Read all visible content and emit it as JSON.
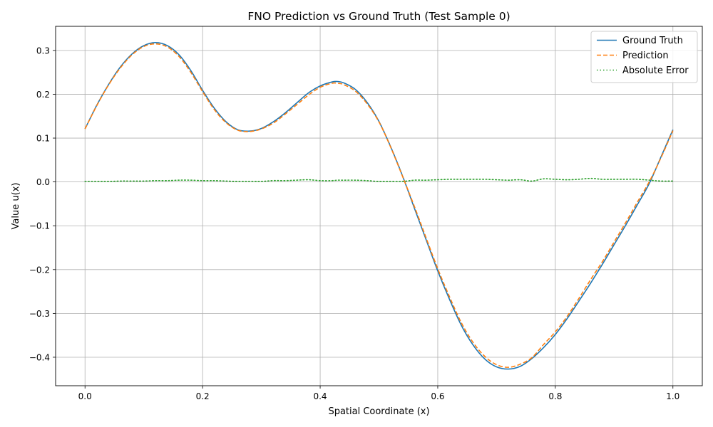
{
  "chart_data": {
    "type": "line",
    "title": "FNO Prediction vs Ground Truth (Test Sample 0)",
    "xlabel": "Spatial Coordinate (x)",
    "ylabel": "Value u(x)",
    "xlim": [
      -0.05,
      1.05
    ],
    "ylim": [
      -0.465,
      0.355
    ],
    "xticks": [
      0.0,
      0.2,
      0.4,
      0.6,
      0.8,
      1.0
    ],
    "xtick_labels": [
      "0.0",
      "0.2",
      "0.4",
      "0.6",
      "0.8",
      "1.0"
    ],
    "yticks": [
      0.3,
      0.2,
      0.1,
      0.0,
      -0.1,
      -0.2,
      -0.3,
      -0.4
    ],
    "ytick_labels": [
      "0.3",
      "0.2",
      "0.1",
      "0.0",
      "−0.1",
      "−0.2",
      "−0.3",
      "−0.4"
    ],
    "grid": true,
    "legend_position": "top-right",
    "x": [
      0.0,
      0.02,
      0.04,
      0.06,
      0.08,
      0.1,
      0.12,
      0.14,
      0.16,
      0.18,
      0.2,
      0.22,
      0.24,
      0.26,
      0.28,
      0.3,
      0.32,
      0.34,
      0.36,
      0.38,
      0.4,
      0.42,
      0.43,
      0.44,
      0.46,
      0.48,
      0.5,
      0.52,
      0.54,
      0.56,
      0.58,
      0.6,
      0.62,
      0.64,
      0.66,
      0.68,
      0.7,
      0.72,
      0.74,
      0.76,
      0.78,
      0.8,
      0.82,
      0.84,
      0.86,
      0.88,
      0.9,
      0.92,
      0.94,
      0.96,
      0.98,
      1.0
    ],
    "series": [
      {
        "name": "Ground Truth",
        "color": "#1f77b4",
        "style": "solid",
        "values": [
          0.121,
          0.175,
          0.222,
          0.262,
          0.292,
          0.311,
          0.318,
          0.311,
          0.29,
          0.254,
          0.209,
          0.168,
          0.137,
          0.119,
          0.116,
          0.122,
          0.137,
          0.157,
          0.18,
          0.203,
          0.219,
          0.228,
          0.229,
          0.226,
          0.211,
          0.181,
          0.138,
          0.08,
          0.014,
          -0.059,
          -0.131,
          -0.203,
          -0.268,
          -0.327,
          -0.372,
          -0.404,
          -0.422,
          -0.427,
          -0.421,
          -0.403,
          -0.378,
          -0.348,
          -0.312,
          -0.272,
          -0.231,
          -0.188,
          -0.143,
          -0.098,
          -0.051,
          -0.003,
          0.058,
          0.119
        ]
      },
      {
        "name": "Prediction",
        "color": "#ff7f0e",
        "style": "dashed",
        "values": [
          0.121,
          0.174,
          0.221,
          0.26,
          0.29,
          0.309,
          0.315,
          0.308,
          0.286,
          0.25,
          0.206,
          0.165,
          0.135,
          0.118,
          0.115,
          0.121,
          0.134,
          0.154,
          0.176,
          0.198,
          0.216,
          0.225,
          0.225,
          0.222,
          0.207,
          0.178,
          0.137,
          0.079,
          0.013,
          -0.055,
          -0.127,
          -0.198,
          -0.262,
          -0.321,
          -0.366,
          -0.398,
          -0.417,
          -0.423,
          -0.416,
          -0.401,
          -0.371,
          -0.342,
          -0.307,
          -0.266,
          -0.223,
          -0.182,
          -0.137,
          -0.092,
          -0.045,
          0.001,
          0.056,
          0.117
        ]
      },
      {
        "name": "Absolute Error",
        "color": "#2ca02c",
        "style": "dotted",
        "values": [
          0.001,
          0.001,
          0.001,
          0.002,
          0.002,
          0.002,
          0.003,
          0.003,
          0.004,
          0.004,
          0.003,
          0.003,
          0.002,
          0.001,
          0.001,
          0.001,
          0.003,
          0.003,
          0.004,
          0.005,
          0.003,
          0.003,
          0.004,
          0.004,
          0.004,
          0.003,
          0.001,
          0.001,
          0.001,
          0.004,
          0.004,
          0.005,
          0.006,
          0.006,
          0.006,
          0.006,
          0.005,
          0.004,
          0.005,
          0.002,
          0.007,
          0.006,
          0.005,
          0.006,
          0.008,
          0.006,
          0.006,
          0.006,
          0.006,
          0.004,
          0.002,
          0.002
        ]
      }
    ]
  }
}
